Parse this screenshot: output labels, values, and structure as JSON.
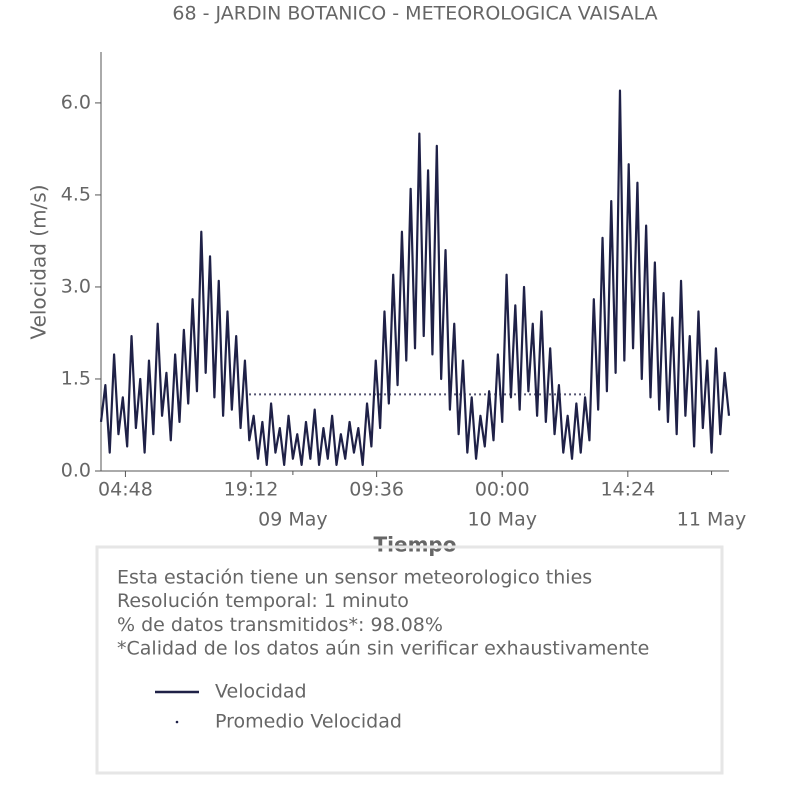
{
  "chart_data": {
    "type": "line",
    "title": "68 - JARDIN BOTANICO - METEOROLOGICA VAISALA",
    "x_label": "Tiempo",
    "y_label": "Velocidad (m/s)",
    "xlim": [
      "08 May 02:00",
      "11 May 02:00"
    ],
    "ylim": [
      0,
      6.83
    ],
    "yticks": [
      {
        "value": 0,
        "label": "0.0"
      },
      1.5,
      {
        "value": 3,
        "label": "3.0"
      },
      4.5,
      {
        "value": 6,
        "label": "6.0"
      }
    ],
    "xticks": [
      {
        "value": "08 May 04:48",
        "label": "04:48"
      },
      {
        "value": "08 May 19:12",
        "label": "19:12"
      },
      {
        "value": "09 May 09:36",
        "label": "09:36"
      },
      {
        "value": "10 May 00:00",
        "label": "00:00"
      },
      {
        "value": "10 May 14:24",
        "label": "14:24"
      }
    ],
    "xticks_minor": [
      {
        "value": "09 May 00:00",
        "label": "09 May"
      },
      {
        "value": "10 May 00:00",
        "label": "10 May"
      },
      {
        "value": "11 May 00:00",
        "label": "11 May"
      }
    ],
    "annotations": [
      "Esta estación tiene un sensor meteorologico thies",
      "Resolución temporal: 1 minuto",
      "% de datos transmitidos*: 98.08%",
      "*Calidad de los datos aún sin verificar exhaustivamente"
    ],
    "x": [
      "08 May 02:00",
      "08 May 02:30",
      "08 May 03:00",
      "08 May 03:30",
      "08 May 04:00",
      "08 May 04:30",
      "08 May 05:00",
      "08 May 05:30",
      "08 May 06:00",
      "08 May 06:30",
      "08 May 07:00",
      "08 May 07:30",
      "08 May 08:00",
      "08 May 08:30",
      "08 May 09:00",
      "08 May 09:30",
      "08 May 10:00",
      "08 May 10:30",
      "08 May 11:00",
      "08 May 11:30",
      "08 May 12:00",
      "08 May 12:30",
      "08 May 13:00",
      "08 May 13:30",
      "08 May 14:00",
      "08 May 14:30",
      "08 May 15:00",
      "08 May 15:30",
      "08 May 16:00",
      "08 May 16:30",
      "08 May 17:00",
      "08 May 17:30",
      "08 May 18:00",
      "08 May 18:30",
      "08 May 19:00",
      "08 May 19:30",
      "08 May 20:00",
      "08 May 20:30",
      "08 May 21:00",
      "08 May 21:30",
      "08 May 22:00",
      "08 May 22:30",
      "08 May 23:00",
      "08 May 23:30",
      "09 May 00:00",
      "09 May 00:30",
      "09 May 01:00",
      "09 May 01:30",
      "09 May 02:00",
      "09 May 02:30",
      "09 May 03:00",
      "09 May 03:30",
      "09 May 04:00",
      "09 May 04:30",
      "09 May 05:00",
      "09 May 05:30",
      "09 May 06:00",
      "09 May 06:30",
      "09 May 07:00",
      "09 May 07:30",
      "09 May 08:00",
      "09 May 08:30",
      "09 May 09:00",
      "09 May 09:30",
      "09 May 10:00",
      "09 May 10:30",
      "09 May 11:00",
      "09 May 11:30",
      "09 May 12:00",
      "09 May 12:30",
      "09 May 13:00",
      "09 May 13:30",
      "09 May 14:00",
      "09 May 14:30",
      "09 May 15:00",
      "09 May 15:30",
      "09 May 16:00",
      "09 May 16:30",
      "09 May 17:00",
      "09 May 17:30",
      "09 May 18:00",
      "09 May 18:30",
      "09 May 19:00",
      "09 May 19:30",
      "09 May 20:00",
      "09 May 20:30",
      "09 May 21:00",
      "09 May 21:30",
      "09 May 22:00",
      "09 May 22:30",
      "09 May 23:00",
      "09 May 23:30",
      "10 May 00:00",
      "10 May 00:30",
      "10 May 01:00",
      "10 May 01:30",
      "10 May 02:00",
      "10 May 02:30",
      "10 May 03:00",
      "10 May 03:30",
      "10 May 04:00",
      "10 May 04:30",
      "10 May 05:00",
      "10 May 05:30",
      "10 May 06:00",
      "10 May 06:30",
      "10 May 07:00",
      "10 May 07:30",
      "10 May 08:00",
      "10 May 08:30",
      "10 May 09:00",
      "10 May 09:30",
      "10 May 10:00",
      "10 May 10:30",
      "10 May 11:00",
      "10 May 11:30",
      "10 May 12:00",
      "10 May 12:30",
      "10 May 13:00",
      "10 May 13:30",
      "10 May 14:00",
      "10 May 14:30",
      "10 May 15:00",
      "10 May 15:30",
      "10 May 16:00",
      "10 May 16:30",
      "10 May 17:00",
      "10 May 17:30",
      "10 May 18:00",
      "10 May 18:30",
      "10 May 19:00",
      "10 May 19:30",
      "10 May 20:00",
      "10 May 20:30",
      "10 May 21:00",
      "10 May 21:30",
      "10 May 22:00",
      "10 May 22:30",
      "10 May 23:00",
      "10 May 23:30",
      "11 May 00:00",
      "11 May 00:30",
      "11 May 01:00",
      "11 May 01:30",
      "11 May 02:00"
    ],
    "series": [
      {
        "name": "Velocidad",
        "color": "#1f2147",
        "linestyle": "solid",
        "values": [
          0.8,
          1.4,
          0.3,
          1.9,
          0.6,
          1.2,
          0.4,
          2.2,
          0.7,
          1.5,
          0.3,
          1.8,
          0.6,
          2.4,
          0.9,
          1.6,
          0.5,
          1.9,
          0.8,
          2.3,
          1.1,
          2.8,
          1.3,
          3.9,
          1.6,
          3.5,
          1.2,
          3.1,
          0.9,
          2.6,
          1.0,
          2.2,
          0.7,
          1.8,
          0.5,
          0.9,
          0.2,
          0.8,
          0.1,
          1.1,
          0.3,
          0.7,
          0.1,
          0.9,
          0.2,
          0.6,
          0.1,
          0.8,
          0.2,
          1.0,
          0.1,
          0.7,
          0.2,
          0.9,
          0.1,
          0.6,
          0.2,
          0.8,
          0.3,
          0.7,
          0.1,
          1.1,
          0.4,
          1.8,
          0.7,
          2.6,
          1.1,
          3.2,
          1.4,
          3.9,
          1.8,
          4.6,
          2.0,
          5.5,
          2.2,
          4.9,
          1.9,
          5.3,
          1.5,
          3.6,
          1.0,
          2.4,
          0.6,
          1.8,
          0.3,
          1.2,
          0.2,
          0.9,
          0.4,
          1.3,
          0.5,
          1.9,
          0.8,
          3.2,
          1.2,
          2.7,
          1.0,
          3.0,
          1.3,
          2.4,
          0.9,
          2.6,
          0.8,
          2.0,
          0.6,
          1.4,
          0.3,
          0.9,
          0.2,
          1.1,
          0.3,
          1.2,
          0.5,
          2.8,
          1.0,
          3.8,
          1.3,
          4.4,
          1.6,
          6.2,
          1.8,
          5.0,
          2.0,
          4.7,
          1.5,
          4.0,
          1.2,
          3.4,
          1.0,
          2.9,
          0.8,
          2.5,
          0.6,
          3.1,
          0.9,
          2.2,
          0.4,
          2.6,
          0.7,
          1.8,
          0.3,
          2.0,
          0.6,
          1.6,
          0.9
        ]
      },
      {
        "name": "Promedio Velocidad",
        "color": "#1f2147",
        "linestyle": "dotted",
        "values": [
          null,
          null,
          null,
          null,
          null,
          null,
          null,
          null,
          null,
          null,
          null,
          null,
          null,
          null,
          null,
          null,
          null,
          null,
          null,
          null,
          null,
          null,
          null,
          null,
          null,
          null,
          null,
          null,
          null,
          null,
          null,
          null,
          null,
          null,
          1.25,
          1.25,
          1.25,
          1.25,
          1.25,
          1.25,
          1.25,
          1.25,
          1.25,
          1.25,
          1.25,
          1.25,
          1.25,
          1.25,
          1.25,
          1.25,
          1.25,
          1.25,
          1.25,
          1.25,
          1.25,
          1.25,
          1.25,
          1.25,
          1.25,
          1.25,
          1.25,
          1.25,
          1.25,
          1.25,
          1.25,
          1.25,
          1.25,
          1.25,
          1.25,
          1.25,
          1.25,
          1.25,
          1.25,
          1.25,
          1.25,
          1.25,
          1.25,
          1.25,
          1.25,
          1.25,
          1.25,
          1.25,
          1.25,
          1.25,
          1.25,
          1.25,
          1.25,
          1.25,
          1.25,
          1.25,
          1.25,
          1.25,
          1.25,
          1.25,
          1.25,
          1.25,
          1.25,
          1.25,
          1.25,
          1.25,
          1.25,
          1.25,
          1.25,
          1.25,
          1.25,
          1.25,
          1.25,
          1.25,
          1.25,
          1.25,
          1.25,
          1.25,
          null,
          null,
          null,
          null,
          null,
          null,
          null,
          null,
          null,
          null,
          null,
          null,
          null,
          null,
          null,
          null,
          null,
          null,
          null,
          null,
          null,
          null,
          null,
          null,
          null,
          null,
          null,
          null,
          null,
          null,
          null,
          null,
          null
        ]
      }
    ]
  }
}
